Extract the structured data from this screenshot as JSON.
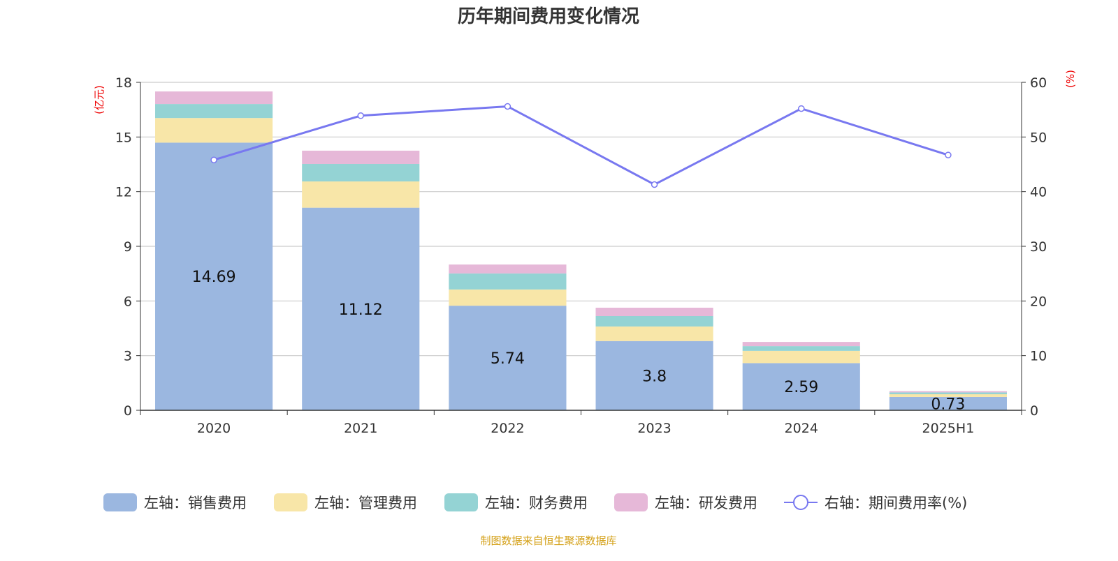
{
  "chart_data": {
    "type": "bar",
    "title": "历年期间费用变化情况",
    "left_axis_unit": "(亿元)",
    "right_axis_unit": "(%)",
    "categories": [
      "2020",
      "2021",
      "2022",
      "2023",
      "2024",
      "2025H1"
    ],
    "ylim_left": [
      0,
      18
    ],
    "yticks_left": [
      0,
      3,
      6,
      9,
      12,
      15,
      18
    ],
    "ylim_right": [
      0,
      60
    ],
    "yticks_right": [
      0,
      10,
      20,
      30,
      40,
      50,
      60
    ],
    "grid": true,
    "stacked": true,
    "legend_position": "bottom",
    "series": [
      {
        "name": "左轴：销售费用",
        "type": "bar",
        "axis": "left",
        "color": "#9bb7e0",
        "values": [
          14.69,
          11.12,
          5.74,
          3.8,
          2.59,
          0.73
        ],
        "labels": [
          "14.69",
          "11.12",
          "5.74",
          "3.8",
          "2.59",
          "0.73"
        ]
      },
      {
        "name": "左轴：管理费用",
        "type": "bar",
        "axis": "left",
        "color": "#f8e6a8",
        "values": [
          1.35,
          1.44,
          0.89,
          0.8,
          0.67,
          0.15
        ]
      },
      {
        "name": "左轴：财务费用",
        "type": "bar",
        "axis": "left",
        "color": "#94d3d4",
        "values": [
          0.77,
          0.96,
          0.88,
          0.57,
          0.26,
          0.1
        ]
      },
      {
        "name": "左轴：研发费用",
        "type": "bar",
        "axis": "left",
        "color": "#e6b8d8",
        "values": [
          0.69,
          0.73,
          0.49,
          0.46,
          0.23,
          0.07
        ]
      },
      {
        "name": "右轴：期间费用率(%)",
        "type": "line",
        "axis": "right",
        "color": "#7878f0",
        "values": [
          45.8,
          53.9,
          55.6,
          41.3,
          55.2,
          46.7
        ]
      }
    ],
    "source": "制图数据来自恒生聚源数据库"
  }
}
